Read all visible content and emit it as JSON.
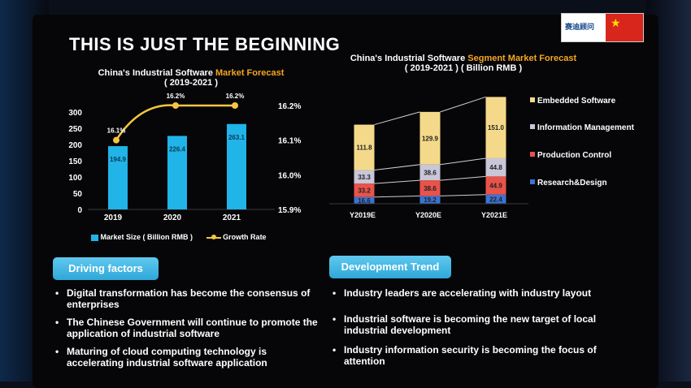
{
  "slide_title": "THIS IS JUST THE BEGINNING",
  "logo_text": "赛迪顾问",
  "left_chart": {
    "title_prefix": "China's Industrial Software ",
    "title_highlight": "Market Forecast",
    "title_years": "( 2019-2021 )",
    "legend_bar": "Market Size ( Billion RMB )",
    "legend_line": "Growth Rate"
  },
  "right_chart": {
    "title_prefix": "China's Industrial Software ",
    "title_highlight": "Segment Market Forecast",
    "title_years": "( 2019-2021 ) ( Billion RMB )"
  },
  "chart_data": [
    {
      "type": "bar",
      "title": "China's Industrial Software Market Forecast (2019-2021)",
      "categories": [
        "2019",
        "2020",
        "2021"
      ],
      "series": [
        {
          "name": "Market Size ( Billion RMB )",
          "values": [
            194.9,
            226.4,
            263.1
          ],
          "labels": [
            "194.9",
            "226.4",
            "263.1"
          ],
          "color": "#20b4e8"
        },
        {
          "name": "Growth Rate",
          "type": "line",
          "values": [
            16.1,
            16.2,
            16.2
          ],
          "labels": [
            "16.1%",
            "16.2%",
            "16.2%"
          ],
          "color": "#f5c542"
        }
      ],
      "y_left_ticks": [
        "0",
        "50",
        "100",
        "150",
        "200",
        "250",
        "300"
      ],
      "ylim": [
        0,
        300
      ],
      "y_right_ticks": [
        "15.9%",
        "16.0%",
        "16.1%",
        "16.2%"
      ],
      "y2lim": [
        15.9,
        16.2
      ]
    },
    {
      "type": "bar",
      "stacked": true,
      "title": "China's Industrial Software Segment Market Forecast (2019-2021) (Billion RMB)",
      "categories": [
        "Y2019E",
        "Y2020E",
        "Y2021E"
      ],
      "series": [
        {
          "name": "Research&Design",
          "values": [
            16.6,
            19.2,
            22.4
          ],
          "labels": [
            "16.6",
            "19.2",
            "22.4"
          ],
          "color": "#3a73d6"
        },
        {
          "name": "Production Control",
          "values": [
            33.2,
            38.6,
            44.9
          ],
          "labels": [
            "33.2",
            "38.6",
            "44.9"
          ],
          "color": "#e8534a"
        },
        {
          "name": "Information Management",
          "values": [
            33.3,
            38.6,
            44.8
          ],
          "labels": [
            "33.3",
            "38.6",
            "44.8"
          ],
          "color": "#c9c6d8"
        },
        {
          "name": "Embedded Software",
          "values": [
            111.8,
            129.9,
            151.0
          ],
          "labels": [
            "111.8",
            "129.9",
            "151.0"
          ],
          "color": "#f5d98a"
        }
      ],
      "legend_order": [
        "Embedded Software",
        "Information Management",
        "Production Control",
        "Research&Design"
      ]
    }
  ],
  "driving": {
    "title": "Driving factors",
    "items": [
      "Digital transformation has become the consensus of enterprises",
      "The Chinese Government will continue to promote the application of industrial software",
      "Maturing of cloud computing technology is accelerating industrial software application"
    ]
  },
  "trend": {
    "title": "Development Trend",
    "items": [
      "Industry leaders are accelerating with industry layout",
      "Industrial software is becoming the new target of local industrial development",
      "Industry information security is becoming the focus of attention"
    ]
  }
}
